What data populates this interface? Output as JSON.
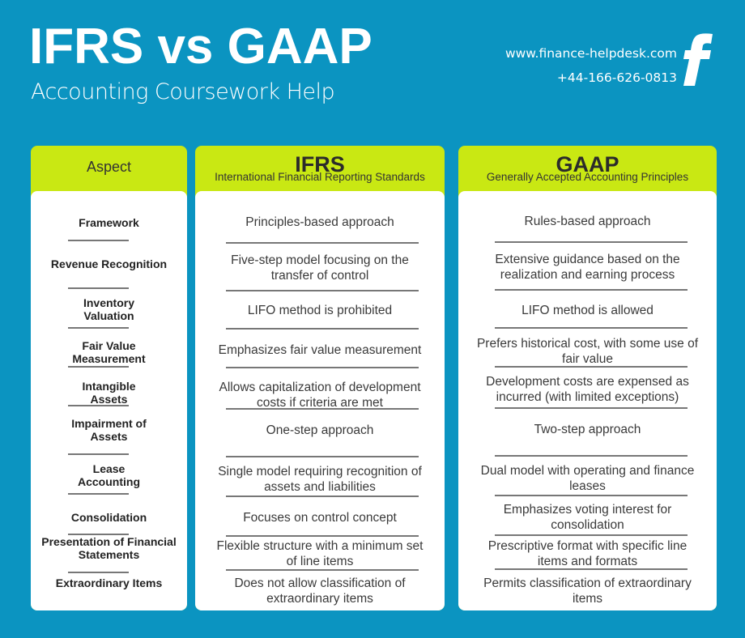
{
  "header": {
    "title": "IFRS vs GAAP",
    "subtitle": "Accounting Coursework Help",
    "website": "www.finance-helpdesk.com",
    "phone": "+44-166-626-0813",
    "logo_icon": "f-letter-logo"
  },
  "colors": {
    "background": "#0b94c1",
    "header_accent": "#c9e813",
    "card_body": "#ffffff"
  },
  "columns": {
    "aspect": {
      "label": "Aspect"
    },
    "ifrs": {
      "label": "IFRS",
      "full_name": "International Financial Reporting Standards"
    },
    "gaap": {
      "label": "GAAP",
      "full_name": "Generally Accepted Accounting Principles"
    }
  },
  "rows": [
    {
      "aspect": "Framework",
      "ifrs": "Principles-based approach",
      "gaap": "Rules-based approach"
    },
    {
      "aspect": "Revenue Recognition",
      "ifrs": "Five-step model focusing on the transfer of control",
      "gaap": "Extensive guidance based on the realization and earning process"
    },
    {
      "aspect": "Inventory Valuation",
      "ifrs": "LIFO method is prohibited",
      "gaap": "LIFO method is allowed"
    },
    {
      "aspect": "Fair Value Measurement",
      "ifrs": "Emphasizes fair value measurement",
      "gaap": "Prefers historical cost, with some use of fair value"
    },
    {
      "aspect": "Intangible Assets",
      "ifrs": "Allows capitalization of development costs if criteria are met",
      "gaap": "Development costs are expensed as incurred (with limited exceptions)"
    },
    {
      "aspect": "Impairment of Assets",
      "ifrs": "One-step approach",
      "gaap": "Two-step approach"
    },
    {
      "aspect": "Lease Accounting",
      "ifrs": "Single model requiring recognition of assets and liabilities",
      "gaap": "Dual model with operating and finance leases"
    },
    {
      "aspect": "Consolidation",
      "ifrs": "Focuses on control concept",
      "gaap": "Emphasizes voting interest for consolidation"
    },
    {
      "aspect": "Presentation of Financial Statements",
      "ifrs": "Flexible structure with a minimum set of line items",
      "gaap": "Prescriptive format with specific line items and formats"
    },
    {
      "aspect": "Extraordinary Items",
      "ifrs": "Does not allow classification of extraordinary items",
      "gaap": "Permits classification of extraordinary items"
    }
  ]
}
